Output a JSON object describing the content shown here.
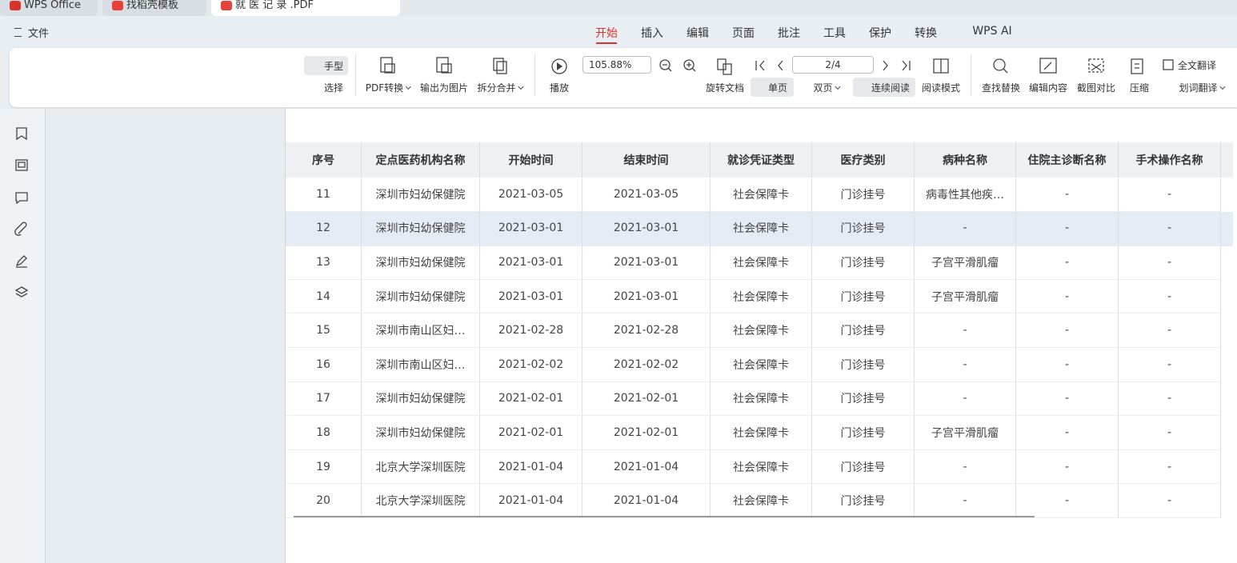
{
  "tabs": [
    "WPS Office",
    "找稻壳模板",
    "就 医 记 录 .PDF"
  ],
  "menu": {
    "file": "文件",
    "tabs": [
      "开始",
      "插入",
      "编辑",
      "页面",
      "批注",
      "工具",
      "保护",
      "转换",
      "WPS AI"
    ]
  },
  "toolbar": {
    "hand": "手型",
    "select": "选择",
    "zoom": "105.88%",
    "page": "2/4",
    "buttons": [
      "PDF转换",
      "输出为图片",
      "拆分合并",
      "播放",
      "旋转文档",
      "单页",
      "双页",
      "连续阅读",
      "阅读模式",
      "查找替换",
      "编辑内容",
      "截图对比",
      "压缩",
      "全文翻译",
      "划词翻译"
    ]
  },
  "table": {
    "header": [
      "序号",
      "定点医药机构名称",
      "开始时间",
      "结束时间",
      "就诊凭证类型",
      "医疗类别",
      "病种名称",
      "住院主诊断名称",
      "手术操作名称"
    ],
    "rows": [
      [
        "11",
        "深圳市妇幼保健院",
        "2021-03-05",
        "2021-03-05",
        "社会保障卡",
        "门诊挂号",
        "病毒性其他疾…",
        "-",
        "-"
      ],
      [
        "12",
        "深圳市妇幼保健院",
        "2021-03-01",
        "2021-03-01",
        "社会保障卡",
        "门诊挂号",
        "-",
        "-",
        "-"
      ],
      [
        "13",
        "深圳市妇幼保健院",
        "2021-03-01",
        "2021-03-01",
        "社会保障卡",
        "门诊挂号",
        "子宫平滑肌瘤",
        "-",
        "-"
      ],
      [
        "14",
        "深圳市妇幼保健院",
        "2021-03-01",
        "2021-03-01",
        "社会保障卡",
        "门诊挂号",
        "子宫平滑肌瘤",
        "-",
        "-"
      ],
      [
        "15",
        "深圳市南山区妇…",
        "2021-02-28",
        "2021-02-28",
        "社会保障卡",
        "门诊挂号",
        "-",
        "-",
        "-"
      ],
      [
        "16",
        "深圳市南山区妇…",
        "2021-02-02",
        "2021-02-02",
        "社会保障卡",
        "门诊挂号",
        "-",
        "-",
        "-"
      ],
      [
        "17",
        "深圳市妇幼保健院",
        "2021-02-01",
        "2021-02-01",
        "社会保障卡",
        "门诊挂号",
        "-",
        "-",
        "-"
      ],
      [
        "18",
        "深圳市妇幼保健院",
        "2021-02-01",
        "2021-02-01",
        "社会保障卡",
        "门诊挂号",
        "子宫平滑肌瘤",
        "-",
        "-"
      ],
      [
        "19",
        "北京大学深圳医院",
        "2021-01-04",
        "2021-01-04",
        "社会保障卡",
        "门诊挂号",
        "-",
        "-",
        "-"
      ],
      [
        "20",
        "北京大学深圳医院",
        "2021-01-04",
        "2021-01-04",
        "社会保障卡",
        "门诊挂号",
        "-",
        "-",
        "-"
      ]
    ]
  }
}
